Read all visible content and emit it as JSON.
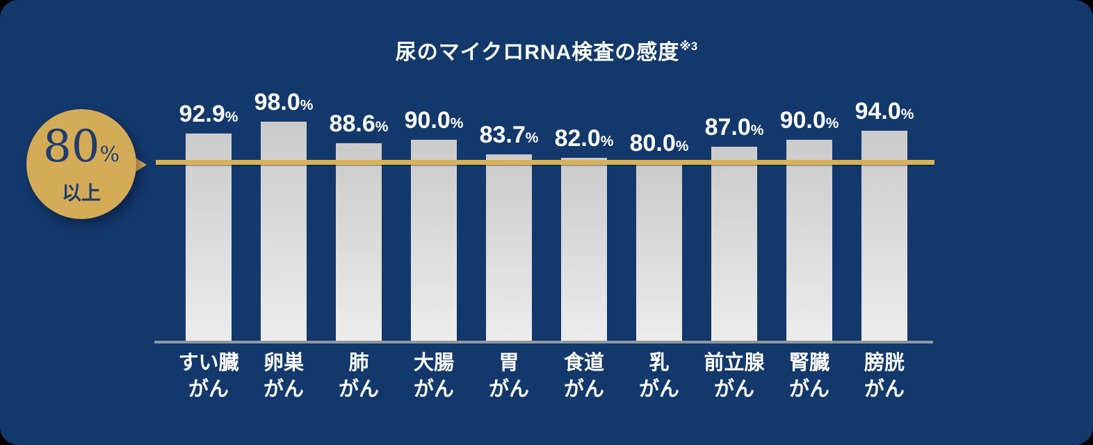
{
  "title": {
    "text": "尿のマイクロRNA検査の感度",
    "superscript": "※3"
  },
  "threshold_badge": {
    "value": "80",
    "percent_sign": "%",
    "label": "以上"
  },
  "chart_data": {
    "type": "bar",
    "title": "尿のマイクロRNA検査の感度※3",
    "categories": [
      "すい臓\nがん",
      "卵巣\nがん",
      "肺\nがん",
      "大腸\nがん",
      "胃\nがん",
      "食道\nがん",
      "乳\nがん",
      "前立腺\nがん",
      "腎臓\nがん",
      "膀胱\nがん"
    ],
    "values": [
      92.9,
      98.0,
      88.6,
      90.0,
      83.7,
      82.0,
      80.0,
      87.0,
      90.0,
      94.0
    ],
    "value_labels": [
      "92.9",
      "98.0",
      "88.6",
      "90.0",
      "83.7",
      "82.0",
      "80.0",
      "87.0",
      "90.0",
      "94.0"
    ],
    "unit": "%",
    "ylabel": "",
    "xlabel": "",
    "ylim": [
      0,
      100
    ],
    "threshold": 80,
    "threshold_label": "80%以上",
    "grid": false,
    "legend": false
  },
  "colors": {
    "background": "#13386b",
    "bar_top": "#cbcbcb",
    "bar_bottom": "#ededed",
    "gold": "#d4ab57",
    "threshold_line": "#d8b259",
    "axis_line": "#92989c",
    "text": "#ffffff",
    "badge_text": "#1e3d6f"
  }
}
